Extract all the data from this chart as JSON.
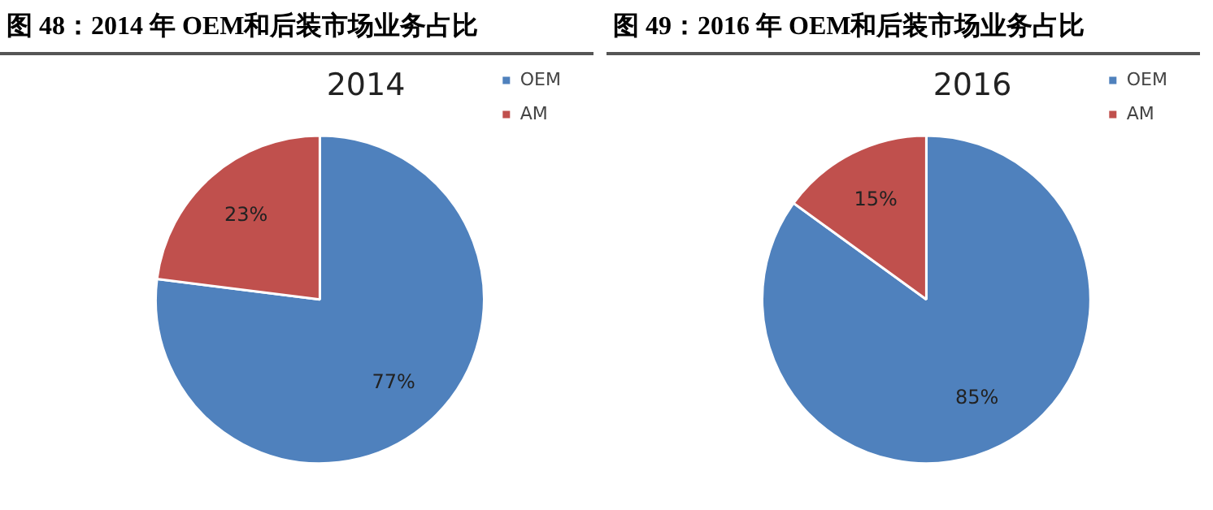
{
  "chart_data": [
    {
      "type": "pie",
      "title": "图 48：2014 年 OEM和后装市场业务占比",
      "subtitle": "2014",
      "categories": [
        "OEM",
        "AM"
      ],
      "values": [
        77,
        23
      ],
      "colors": [
        "#4f81bd",
        "#c0504d"
      ],
      "value_labels": [
        "77%",
        "23%"
      ],
      "legend": "top right"
    },
    {
      "type": "pie",
      "title": "图 49：2016 年 OEM和后装市场业务占比",
      "subtitle": "2016",
      "categories": [
        "OEM",
        "AM"
      ],
      "values": [
        85,
        15
      ],
      "colors": [
        "#4f81bd",
        "#c0504d"
      ],
      "value_labels": [
        "85%",
        "15%"
      ],
      "legend": "top right"
    }
  ]
}
